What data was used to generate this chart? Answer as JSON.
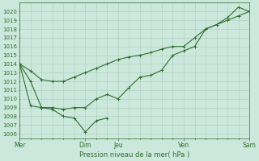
{
  "xlabel": "Pression niveau de la mer( hPa )",
  "ylim": [
    1005.5,
    1021.0
  ],
  "yticks": [
    1006,
    1007,
    1008,
    1009,
    1010,
    1011,
    1012,
    1013,
    1014,
    1015,
    1016,
    1017,
    1018,
    1019,
    1020
  ],
  "bg_color": "#cce8dc",
  "line_color": "#2d6e2d",
  "grid_color": "#aaccbb",
  "xtick_labels": [
    "Mer",
    "Dim",
    "Jeu",
    "Ven",
    "Sam"
  ],
  "xtick_positions": [
    0,
    6,
    9,
    15,
    21
  ],
  "vline_positions": [
    0,
    6,
    9,
    15,
    21
  ],
  "line1_x": [
    0,
    1,
    2,
    3,
    4,
    5,
    6,
    7,
    8,
    9,
    10,
    11,
    12,
    13,
    14,
    15,
    16,
    17,
    18,
    19,
    20,
    21
  ],
  "line1_y": [
    1014.0,
    1013.2,
    1012.2,
    1012.0,
    1012.0,
    1012.5,
    1013.0,
    1013.5,
    1014.0,
    1014.5,
    1014.8,
    1015.0,
    1015.3,
    1015.7,
    1016.0,
    1016.0,
    1017.0,
    1018.0,
    1018.5,
    1019.0,
    1019.5,
    1020.0
  ],
  "line2_x": [
    0,
    1,
    2,
    3,
    4,
    5,
    6,
    7,
    8,
    9,
    10,
    11,
    12,
    13,
    14,
    15,
    16,
    17,
    18,
    19,
    20,
    21
  ],
  "line2_y": [
    1014.0,
    1012.0,
    1009.0,
    1009.0,
    1008.8,
    1009.0,
    1009.0,
    1010.0,
    1010.5,
    1010.0,
    1011.3,
    1012.5,
    1012.7,
    1013.3,
    1015.0,
    1015.5,
    1016.0,
    1018.0,
    1018.5,
    1019.3,
    1020.5,
    1020.0
  ],
  "line3_x": [
    0,
    1,
    2,
    3,
    4,
    5,
    6,
    7,
    8
  ],
  "line3_y": [
    1014.0,
    1009.2,
    1009.0,
    1008.8,
    1008.0,
    1007.8,
    1006.2,
    1007.5,
    1007.8
  ]
}
